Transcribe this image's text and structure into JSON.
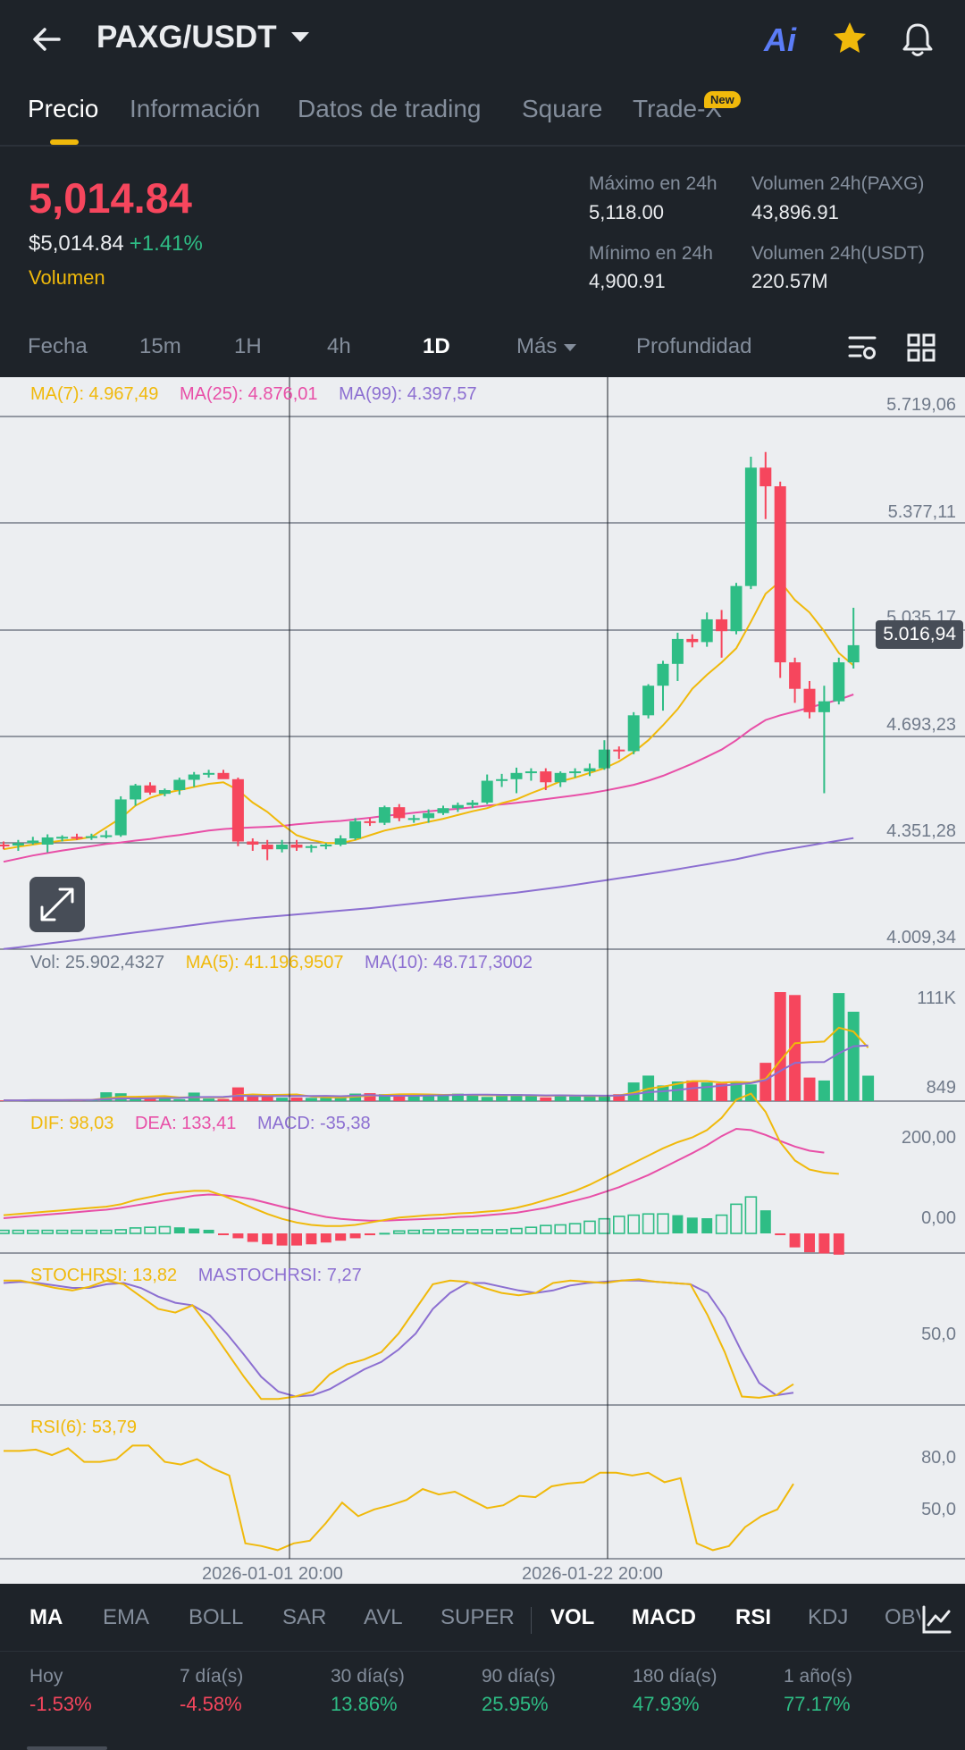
{
  "header": {
    "pair": "PAXG/USDT",
    "ai_label": "Ai"
  },
  "tabs": [
    {
      "label": "Precio"
    },
    {
      "label": "Información"
    },
    {
      "label": "Datos de trading"
    },
    {
      "label": "Square"
    },
    {
      "label": "Trade-X"
    }
  ],
  "new_badge": "New",
  "price": {
    "last": "5,014.84",
    "usd": "$5,014.84",
    "change": "+1.41%",
    "volume_link": "Volumen"
  },
  "stats": {
    "high_label": "Máximo en 24h",
    "high_value": "5,118.00",
    "low_label": "Mínimo en 24h",
    "low_value": "4,900.91",
    "vol_base_label": "Volumen 24h(PAXG)",
    "vol_base_value": "43,896.91",
    "vol_quote_label": "Volumen 24h(USDT)",
    "vol_quote_value": "220.57M"
  },
  "intervals": [
    "Fecha",
    "15m",
    "1H",
    "4h",
    "1D",
    "Más",
    "Profundidad"
  ],
  "active_interval": "1D",
  "legends": {
    "ma7": "MA(7): 4.967,49",
    "ma25": "MA(25): 4.876,01",
    "ma99": "MA(99): 4.397,57",
    "vol": "Vol: 25.902,4327",
    "vol_ma5": "MA(5): 41.196,9507",
    "vol_ma10": "MA(10): 48.717,3002",
    "dif": "DIF: 98,03",
    "dea": "DEA: 133,41",
    "macd": "MACD: -35,38",
    "stoch": "STOCHRSI: 13,82",
    "mastoch": "MASTOCHRSI: 7,27",
    "rsi": "RSI(6): 53,79"
  },
  "price_axis": [
    "5.719,06",
    "5.377,11",
    "5.035,17",
    "4.693,23",
    "4.351,28",
    "4.009,34"
  ],
  "current_price_tag": "5.016,94",
  "vol_axis": [
    "111K",
    "849"
  ],
  "macd_axis": [
    "200,00",
    "0,00"
  ],
  "stoch_axis": [
    "50,0"
  ],
  "rsi_axis": [
    "80,0",
    "50,0"
  ],
  "dates": [
    "2026-01-01 20:00",
    "2026-01-22 20:00"
  ],
  "indicators": [
    "MA",
    "EMA",
    "BOLL",
    "SAR",
    "AVL",
    "SUPER",
    "VOL",
    "MACD",
    "RSI",
    "KDJ",
    "OBV"
  ],
  "indicators_on": [
    "MA",
    "VOL",
    "MACD",
    "RSI"
  ],
  "performance": [
    {
      "label": "Hoy",
      "value": "-1.53%",
      "dir": "down"
    },
    {
      "label": "7 día(s)",
      "value": "-4.58%",
      "dir": "down"
    },
    {
      "label": "30 día(s)",
      "value": "13.86%",
      "dir": "up"
    },
    {
      "label": "90 día(s)",
      "value": "25.95%",
      "dir": "up"
    },
    {
      "label": "180 día(s)",
      "value": "47.93%",
      "dir": "up"
    },
    {
      "label": "1 año(s)",
      "value": "77.17%",
      "dir": "up"
    }
  ],
  "colors": {
    "up": "#2ebd85",
    "down": "#f6465d",
    "accent": "#f0b90b",
    "ma7": "#f0b90b",
    "ma25": "#e84fa7",
    "ma99": "#8c6fd1"
  },
  "chart_data": {
    "type": "candlestick",
    "interval": "1D",
    "price_axis_range": [
      4009.34,
      5719.06
    ],
    "candles": [
      {
        "o": 4345,
        "h": 4355,
        "l": 4330,
        "c": 4342
      },
      {
        "o": 4342,
        "h": 4360,
        "l": 4325,
        "c": 4350
      },
      {
        "o": 4350,
        "h": 4370,
        "l": 4345,
        "c": 4358
      },
      {
        "o": 4345,
        "h": 4378,
        "l": 4320,
        "c": 4368
      },
      {
        "o": 4368,
        "h": 4375,
        "l": 4355,
        "c": 4370
      },
      {
        "o": 4370,
        "h": 4380,
        "l": 4360,
        "c": 4368
      },
      {
        "o": 4368,
        "h": 4380,
        "l": 4360,
        "c": 4372
      },
      {
        "o": 4372,
        "h": 4390,
        "l": 4365,
        "c": 4375
      },
      {
        "o": 4375,
        "h": 4500,
        "l": 4370,
        "c": 4490
      },
      {
        "o": 4490,
        "h": 4540,
        "l": 4470,
        "c": 4535
      },
      {
        "o": 4535,
        "h": 4545,
        "l": 4505,
        "c": 4512
      },
      {
        "o": 4508,
        "h": 4525,
        "l": 4500,
        "c": 4520
      },
      {
        "o": 4520,
        "h": 4560,
        "l": 4505,
        "c": 4553
      },
      {
        "o": 4553,
        "h": 4578,
        "l": 4530,
        "c": 4570
      },
      {
        "o": 4570,
        "h": 4585,
        "l": 4560,
        "c": 4575
      },
      {
        "o": 4575,
        "h": 4585,
        "l": 4560,
        "c": 4555
      },
      {
        "o": 4555,
        "h": 4560,
        "l": 4340,
        "c": 4355
      },
      {
        "o": 4355,
        "h": 4365,
        "l": 4325,
        "c": 4345
      },
      {
        "o": 4345,
        "h": 4360,
        "l": 4295,
        "c": 4330
      },
      {
        "o": 4330,
        "h": 4360,
        "l": 4320,
        "c": 4345
      },
      {
        "o": 4345,
        "h": 4360,
        "l": 4325,
        "c": 4335
      },
      {
        "o": 4335,
        "h": 4345,
        "l": 4320,
        "c": 4340
      },
      {
        "o": 4340,
        "h": 4350,
        "l": 4330,
        "c": 4345
      },
      {
        "o": 4345,
        "h": 4375,
        "l": 4340,
        "c": 4365
      },
      {
        "o": 4365,
        "h": 4430,
        "l": 4360,
        "c": 4420
      },
      {
        "o": 4420,
        "h": 4430,
        "l": 4405,
        "c": 4415
      },
      {
        "o": 4415,
        "h": 4470,
        "l": 4408,
        "c": 4465
      },
      {
        "o": 4465,
        "h": 4475,
        "l": 4420,
        "c": 4430
      },
      {
        "o": 4430,
        "h": 4440,
        "l": 4415,
        "c": 4430
      },
      {
        "o": 4430,
        "h": 4458,
        "l": 4415,
        "c": 4446
      },
      {
        "o": 4446,
        "h": 4470,
        "l": 4440,
        "c": 4462
      },
      {
        "o": 4462,
        "h": 4480,
        "l": 4450,
        "c": 4472
      },
      {
        "o": 4472,
        "h": 4488,
        "l": 4462,
        "c": 4480
      },
      {
        "o": 4480,
        "h": 4570,
        "l": 4475,
        "c": 4550
      },
      {
        "o": 4550,
        "h": 4572,
        "l": 4530,
        "c": 4555
      },
      {
        "o": 4555,
        "h": 4592,
        "l": 4510,
        "c": 4575
      },
      {
        "o": 4575,
        "h": 4590,
        "l": 4550,
        "c": 4580
      },
      {
        "o": 4580,
        "h": 4590,
        "l": 4520,
        "c": 4545
      },
      {
        "o": 4545,
        "h": 4580,
        "l": 4530,
        "c": 4575
      },
      {
        "o": 4575,
        "h": 4590,
        "l": 4560,
        "c": 4580
      },
      {
        "o": 4580,
        "h": 4605,
        "l": 4565,
        "c": 4590
      },
      {
        "o": 4590,
        "h": 4680,
        "l": 4585,
        "c": 4650
      },
      {
        "o": 4650,
        "h": 4660,
        "l": 4620,
        "c": 4645
      },
      {
        "o": 4645,
        "h": 4770,
        "l": 4635,
        "c": 4760
      },
      {
        "o": 4760,
        "h": 4860,
        "l": 4750,
        "c": 4855
      },
      {
        "o": 4855,
        "h": 4935,
        "l": 4775,
        "c": 4925
      },
      {
        "o": 4925,
        "h": 5025,
        "l": 4870,
        "c": 5005
      },
      {
        "o": 5005,
        "h": 5020,
        "l": 4978,
        "c": 4995
      },
      {
        "o": 4995,
        "h": 5090,
        "l": 4980,
        "c": 5068
      },
      {
        "o": 5068,
        "h": 5098,
        "l": 4945,
        "c": 5030
      },
      {
        "o": 5030,
        "h": 5185,
        "l": 5020,
        "c": 5175
      },
      {
        "o": 5175,
        "h": 5590,
        "l": 5165,
        "c": 5555
      },
      {
        "o": 5555,
        "h": 5605,
        "l": 5390,
        "c": 5495
      },
      {
        "o": 5495,
        "h": 5510,
        "l": 4880,
        "c": 4930
      },
      {
        "o": 4930,
        "h": 4945,
        "l": 4800,
        "c": 4845
      },
      {
        "o": 4845,
        "h": 4870,
        "l": 4750,
        "c": 4770
      },
      {
        "o": 4770,
        "h": 4855,
        "l": 4510,
        "c": 4805
      },
      {
        "o": 4805,
        "h": 4945,
        "l": 4795,
        "c": 4930
      },
      {
        "o": 4930,
        "h": 5105,
        "l": 4910,
        "c": 4985
      }
    ],
    "ma7": [
      4330,
      4338,
      4345,
      4352,
      4358,
      4362,
      4370,
      4400,
      4430,
      4470,
      4495,
      4510,
      4520,
      4530,
      4540,
      4545,
      4520,
      4480,
      4450,
      4410,
      4375,
      4360,
      4350,
      4350,
      4360,
      4375,
      4390,
      4400,
      4408,
      4418,
      4428,
      4440,
      4452,
      4462,
      4478,
      4490,
      4510,
      4528,
      4548,
      4560,
      4575,
      4590,
      4612,
      4642,
      4680,
      4728,
      4780,
      4845,
      4890,
      4930,
      4975,
      5060,
      5150,
      5190,
      5130,
      5090,
      5030,
      4960,
      4920
    ],
    "ma25": [
      4290,
      4300,
      4310,
      4318,
      4326,
      4333,
      4340,
      4347,
      4352,
      4358,
      4363,
      4370,
      4376,
      4383,
      4390,
      4395,
      4398,
      4400,
      4402,
      4405,
      4410,
      4414,
      4418,
      4421,
      4426,
      4431,
      4437,
      4442,
      4447,
      4452,
      4456,
      4460,
      4465,
      4470,
      4474,
      4479,
      4485,
      4491,
      4497,
      4503,
      4510,
      4518,
      4527,
      4537,
      4550,
      4566,
      4585,
      4605,
      4627,
      4650,
      4680,
      4715,
      4745,
      4760,
      4772,
      4785,
      4798,
      4810,
      4827
    ],
    "ma99": [
      4010,
      4015,
      4021,
      4027,
      4033,
      4039,
      4045,
      4051,
      4057,
      4063,
      4069,
      4075,
      4081,
      4087,
      4093,
      4099,
      4104,
      4109,
      4113,
      4117,
      4121,
      4125,
      4129,
      4133,
      4137,
      4141,
      4146,
      4151,
      4156,
      4161,
      4166,
      4171,
      4176,
      4181,
      4186,
      4191,
      4197,
      4203,
      4209,
      4216,
      4223,
      4230,
      4237,
      4244,
      4251,
      4258,
      4266,
      4274,
      4282,
      4290,
      4298,
      4308,
      4318,
      4326,
      4334,
      4342,
      4350,
      4358,
      4366
    ],
    "volume": [
      800,
      900,
      1200,
      1000,
      1300,
      1100,
      1900,
      9000,
      8000,
      2400,
      2900,
      3200,
      2000,
      8700,
      2600,
      2200,
      14000,
      6700,
      6100,
      3500,
      3600,
      3300,
      3400,
      5000,
      7700,
      8100,
      7100,
      6800,
      5900,
      6300,
      5800,
      7600,
      5900,
      4300,
      5900,
      7100,
      6000,
      3800,
      6000,
      4800,
      5900,
      5400,
      7100,
      19000,
      26000,
      16000,
      20000,
      21000,
      19000,
      18000,
      20000,
      17000,
      39000,
      111000,
      108000,
      24000,
      21000,
      110000,
      91000,
      25902
    ],
    "volume_axis_range": [
      849,
      111000
    ],
    "macd_dif": [
      30,
      32,
      34,
      36,
      38,
      40,
      42,
      44,
      48,
      55,
      60,
      65,
      68,
      70,
      70,
      62,
      52,
      42,
      32,
      24,
      18,
      14,
      12,
      12,
      14,
      18,
      22,
      26,
      28,
      30,
      31,
      33,
      34,
      36,
      38,
      42,
      48,
      55,
      62,
      70,
      80,
      92,
      104,
      116,
      128,
      140,
      150,
      158,
      170,
      190,
      220,
      230,
      200,
      150,
      120,
      105,
      100,
      98
    ],
    "macd_dea": [
      25,
      27,
      29,
      31,
      33,
      35,
      37,
      39,
      42,
      46,
      50,
      54,
      58,
      62,
      64,
      63,
      60,
      56,
      50,
      44,
      38,
      32,
      27,
      24,
      22,
      21,
      21,
      22,
      23,
      24,
      25,
      27,
      28,
      30,
      32,
      34,
      38,
      42,
      48,
      54,
      60,
      68,
      76,
      86,
      96,
      108,
      120,
      132,
      145,
      160,
      172,
      170,
      162,
      152,
      143,
      136,
      133
    ],
    "macd_hist": [
      5,
      5,
      5,
      5,
      5,
      5,
      5,
      5,
      6,
      9,
      10,
      11,
      10,
      8,
      6,
      -1,
      -8,
      -14,
      -18,
      -20,
      -20,
      -18,
      -15,
      -12,
      -8,
      -3,
      1,
      4,
      5,
      6,
      6,
      6,
      6,
      6,
      6,
      8,
      10,
      13,
      14,
      16,
      20,
      24,
      28,
      30,
      32,
      32,
      30,
      26,
      25,
      30,
      48,
      60,
      38,
      -2,
      -23,
      -31,
      -33,
      -35
    ],
    "stochrsi": [
      98,
      98,
      95,
      92,
      90,
      93,
      98,
      95,
      85,
      75,
      72,
      78,
      60,
      40,
      20,
      2,
      2,
      4,
      8,
      22,
      30,
      34,
      40,
      55,
      75,
      95,
      98,
      97,
      92,
      88,
      86,
      88,
      96,
      98,
      97,
      96,
      98,
      99,
      97,
      96,
      95,
      70,
      40,
      4,
      3,
      5,
      14
    ],
    "mastochrsi": [
      96,
      97,
      96,
      94,
      92,
      92,
      95,
      96,
      92,
      85,
      80,
      78,
      70,
      55,
      38,
      20,
      8,
      4,
      5,
      10,
      18,
      26,
      32,
      42,
      55,
      75,
      88,
      96,
      96,
      93,
      90,
      88,
      90,
      94,
      96,
      97,
      98,
      98,
      97,
      96,
      95,
      88,
      68,
      40,
      15,
      5,
      7
    ],
    "rsi6": [
      78,
      78,
      79,
      75,
      80,
      70,
      70,
      72,
      82,
      82,
      70,
      68,
      72,
      65,
      60,
      10,
      8,
      5,
      10,
      12,
      25,
      40,
      30,
      35,
      38,
      42,
      50,
      46,
      48,
      42,
      36,
      38,
      45,
      44,
      52,
      54,
      55,
      62,
      62,
      60,
      62,
      55,
      58,
      10,
      5,
      8,
      22,
      30,
      35,
      53.79
    ],
    "dates_shown": [
      "2026-01-01 20:00",
      "2026-01-22 20:00"
    ]
  }
}
